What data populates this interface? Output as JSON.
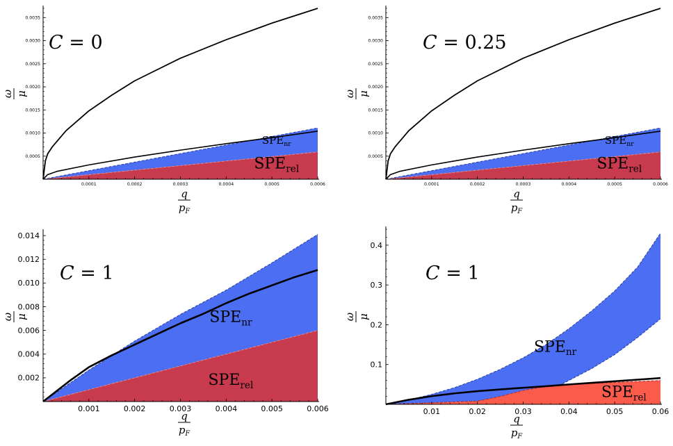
{
  "chart_data": [
    {
      "type": "area",
      "panel": "top-left",
      "annotation": {
        "var": "C",
        "eq": " = ",
        "val": "0"
      },
      "xlabel": {
        "num": "q",
        "den": "p",
        "sub": "F"
      },
      "ylabel": {
        "num": "ω",
        "den": "μ"
      },
      "xlim": [
        0,
        0.0006
      ],
      "ylim": [
        0,
        0.0037
      ],
      "xticks": [
        0.0001,
        0.0002,
        0.0003,
        0.0004,
        0.0005,
        0.0006
      ],
      "xtick_labels": [
        "0.0001",
        "0.0002",
        "0.0003",
        "0.0004",
        "0.0005",
        "0.0006"
      ],
      "yticks": [
        0.0005,
        0.001,
        0.0015,
        0.002,
        0.0025,
        0.003,
        0.0035
      ],
      "ytick_labels": [
        "0.0005",
        "0.0010",
        "0.0015",
        "0.0020",
        "0.0025",
        "0.0030",
        "0.0035"
      ],
      "regions": [
        {
          "name": "SPE_nr",
          "label_main": "SPE",
          "label_sub": "nr",
          "color": "#4b6ef2",
          "edge": "#2a3fa0",
          "lower": [
            [
              0,
              0
            ],
            [
              0.0006,
              0.00059
            ]
          ],
          "upper": [
            [
              0,
              0
            ],
            [
              0.0006,
              0.00111
            ]
          ],
          "label_at": [
            0.00051,
            0.00077
          ],
          "label_size": "small"
        },
        {
          "name": "SPE_rel",
          "label_main": "SPE",
          "label_sub": "rel",
          "color": "#c83a4e",
          "edge": "#e58a8a",
          "lower": [
            [
              0,
              0
            ],
            [
              0.0006,
              0
            ]
          ],
          "upper": [
            [
              0,
              0
            ],
            [
              0.0006,
              0.00059
            ]
          ],
          "label_at": [
            0.00051,
            0.00023
          ],
          "label_size": "large"
        }
      ],
      "curves": [
        {
          "name": "upper-plasmon",
          "points": [
            [
              0,
              0
            ],
            [
              5e-06,
              0.0004
            ],
            [
              1e-05,
              0.00055
            ],
            [
              2e-05,
              0.0007
            ],
            [
              5e-05,
              0.00105
            ],
            [
              0.0001,
              0.00148
            ],
            [
              0.00015,
              0.00182
            ],
            [
              0.0002,
              0.00213
            ],
            [
              0.0003,
              0.00262
            ],
            [
              0.0004,
              0.00302
            ],
            [
              0.0005,
              0.00338
            ],
            [
              0.0006,
              0.0037
            ]
          ],
          "width": 1.8
        },
        {
          "name": "lower-plasmon",
          "points": [
            [
              0,
              0
            ],
            [
              1e-05,
              0.0001
            ],
            [
              3e-05,
              0.00017
            ],
            [
              0.0001,
              0.00031
            ],
            [
              0.0002,
              0.00048
            ],
            [
              0.0003,
              0.00063
            ],
            [
              0.0004,
              0.00077
            ],
            [
              0.0005,
              0.0009
            ],
            [
              0.0006,
              0.00104
            ]
          ],
          "width": 1.6
        }
      ]
    },
    {
      "type": "area",
      "panel": "top-right",
      "annotation": {
        "var": "C",
        "eq": " = ",
        "val": "0.25"
      },
      "xlabel": {
        "num": "q",
        "den": "p",
        "sub": "F"
      },
      "ylabel": {
        "num": "ω",
        "den": "μ"
      },
      "xlim": [
        0,
        0.0006
      ],
      "ylim": [
        0,
        0.0037
      ],
      "xticks": [
        0.0001,
        0.0002,
        0.0003,
        0.0004,
        0.0005,
        0.0006
      ],
      "xtick_labels": [
        "0.0001",
        "0.0002",
        "0.0003",
        "0.0004",
        "0.0005",
        "0.0006"
      ],
      "yticks": [
        0.0005,
        0.001,
        0.0015,
        0.002,
        0.0025,
        0.003,
        0.0035
      ],
      "ytick_labels": [
        "0.0005",
        "0.0010",
        "0.0015",
        "0.0020",
        "0.0025",
        "0.0030",
        "0.0035"
      ],
      "regions": [
        {
          "name": "SPE_nr",
          "label_main": "SPE",
          "label_sub": "nr",
          "color": "#4b6ef2",
          "edge": "#2a3fa0",
          "lower": [
            [
              0,
              0
            ],
            [
              0.0006,
              0.00059
            ]
          ],
          "upper": [
            [
              0,
              0
            ],
            [
              0.0006,
              0.00111
            ]
          ],
          "label_at": [
            0.00051,
            0.00077
          ],
          "label_size": "small"
        },
        {
          "name": "SPE_rel",
          "label_main": "SPE",
          "label_sub": "rel",
          "color": "#c83a4e",
          "edge": "#e58a8a",
          "lower": [
            [
              0,
              0
            ],
            [
              0.0006,
              0
            ]
          ],
          "upper": [
            [
              0,
              0
            ],
            [
              0.0006,
              0.00059
            ]
          ],
          "label_at": [
            0.00051,
            0.00023
          ],
          "label_size": "large"
        }
      ],
      "curves": [
        {
          "name": "upper-plasmon",
          "points": [
            [
              0,
              0
            ],
            [
              5e-06,
              0.0004
            ],
            [
              1e-05,
              0.00055
            ],
            [
              2e-05,
              0.0007
            ],
            [
              5e-05,
              0.00105
            ],
            [
              0.0001,
              0.00148
            ],
            [
              0.00015,
              0.00182
            ],
            [
              0.0002,
              0.00213
            ],
            [
              0.0003,
              0.00262
            ],
            [
              0.0004,
              0.00302
            ],
            [
              0.0005,
              0.00338
            ],
            [
              0.0006,
              0.0037
            ]
          ],
          "width": 1.8
        },
        {
          "name": "lower-plasmon",
          "points": [
            [
              0,
              0
            ],
            [
              1e-05,
              0.0001
            ],
            [
              3e-05,
              0.00017
            ],
            [
              0.0001,
              0.00031
            ],
            [
              0.0002,
              0.00048
            ],
            [
              0.0003,
              0.00063
            ],
            [
              0.0004,
              0.00077
            ],
            [
              0.0005,
              0.0009
            ],
            [
              0.0006,
              0.00104
            ]
          ],
          "width": 1.6
        }
      ]
    },
    {
      "type": "area",
      "panel": "bottom-left",
      "annotation": {
        "var": "C",
        "eq": " = ",
        "val": "1"
      },
      "xlabel": {
        "num": "q",
        "den": "p",
        "sub": "F"
      },
      "ylabel": {
        "num": "ω",
        "den": "μ"
      },
      "xlim": [
        0,
        0.006
      ],
      "ylim": [
        0,
        0.0143
      ],
      "xticks": [
        0.001,
        0.002,
        0.003,
        0.004,
        0.005,
        0.006
      ],
      "xtick_labels": [
        "0.001",
        "0.002",
        "0.003",
        "0.004",
        "0.005",
        "0.006"
      ],
      "yticks": [
        0.002,
        0.004,
        0.006,
        0.008,
        0.01,
        0.012,
        0.014
      ],
      "ytick_labels": [
        "0.002",
        "0.004",
        "0.006",
        "0.008",
        "0.010",
        "0.012",
        "0.014"
      ],
      "regions": [
        {
          "name": "SPE_nr",
          "label_main": "SPE",
          "label_sub": "nr",
          "color": "#4b6ef2",
          "edge": "#2a3fa0",
          "lower": [
            [
              0,
              0
            ],
            [
              0.006,
              0.006
            ]
          ],
          "upper": [
            [
              0,
              0
            ],
            [
              0.001,
              0.00265
            ],
            [
              0.002,
              0.0051
            ],
            [
              0.003,
              0.00735
            ],
            [
              0.004,
              0.0094
            ],
            [
              0.005,
              0.0117
            ],
            [
              0.006,
              0.0141
            ]
          ],
          "label_at": [
            0.0041,
            0.0067
          ],
          "label_size": "large"
        },
        {
          "name": "SPE_rel",
          "label_main": "SPE",
          "label_sub": "rel",
          "color": "#c83a4e",
          "edge": "#e58a8a",
          "lower": [
            [
              0,
              0
            ],
            [
              0.006,
              0
            ]
          ],
          "upper": [
            [
              0,
              0
            ],
            [
              0.006,
              0.006
            ]
          ],
          "label_at": [
            0.0041,
            0.0014
          ],
          "label_size": "large"
        }
      ],
      "curves": [
        {
          "name": "plasmon",
          "points": [
            [
              0,
              0
            ],
            [
              0.0003,
              0.0009
            ],
            [
              0.0006,
              0.0018
            ],
            [
              0.001,
              0.0029
            ],
            [
              0.0015,
              0.0039
            ],
            [
              0.002,
              0.0048
            ],
            [
              0.0025,
              0.0057
            ],
            [
              0.003,
              0.0066
            ],
            [
              0.0035,
              0.0074
            ],
            [
              0.004,
              0.0083
            ],
            [
              0.0045,
              0.0091
            ],
            [
              0.005,
              0.0098
            ],
            [
              0.0055,
              0.0105
            ],
            [
              0.006,
              0.0111
            ]
          ],
          "width": 2.6
        }
      ]
    },
    {
      "type": "area",
      "panel": "bottom-right",
      "annotation": {
        "var": "C",
        "eq": " = ",
        "val": "1"
      },
      "xlabel": {
        "num": "q",
        "den": "p",
        "sub": "F"
      },
      "ylabel": {
        "num": "ω",
        "den": "μ"
      },
      "xlim": [
        0,
        0.06
      ],
      "ylim": [
        0,
        0.44
      ],
      "xticks": [
        0.01,
        0.02,
        0.03,
        0.04,
        0.05,
        0.06
      ],
      "xtick_labels": [
        "0.01",
        "0.02",
        "0.03",
        "0.04",
        "0.05",
        "0.06"
      ],
      "yticks": [
        0.1,
        0.2,
        0.3,
        0.4
      ],
      "ytick_labels": [
        "0.1",
        "0.2",
        "0.3",
        "0.4"
      ],
      "regions": [
        {
          "name": "SPE_nr",
          "label_main": "SPE",
          "label_sub": "nr",
          "color": "#4b6ef2",
          "edge": "#2a3fa0",
          "lower": [
            [
              0,
              0
            ],
            [
              0.005,
              0.002
            ],
            [
              0.01,
              0.004
            ],
            [
              0.015,
              0.006
            ],
            [
              0.02,
              0.008
            ],
            [
              0.025,
              0.01
            ],
            [
              0.03,
              0.013
            ],
            [
              0.035,
              0.03
            ],
            [
              0.04,
              0.06
            ],
            [
              0.045,
              0.09
            ],
            [
              0.05,
              0.125
            ],
            [
              0.055,
              0.168
            ],
            [
              0.06,
              0.215
            ]
          ],
          "upper": [
            [
              0,
              0
            ],
            [
              0.005,
              0.011
            ],
            [
              0.01,
              0.025
            ],
            [
              0.015,
              0.042
            ],
            [
              0.02,
              0.063
            ],
            [
              0.025,
              0.088
            ],
            [
              0.03,
              0.117
            ],
            [
              0.035,
              0.15
            ],
            [
              0.04,
              0.19
            ],
            [
              0.045,
              0.235
            ],
            [
              0.05,
              0.285
            ],
            [
              0.055,
              0.345
            ],
            [
              0.06,
              0.43
            ]
          ],
          "label_at": [
            0.037,
            0.132
          ],
          "label_size": "large"
        },
        {
          "name": "SPE_rel",
          "label_main": "SPE",
          "label_sub": "rel",
          "color": "#fa5b4b",
          "edge": "#a33",
          "lower": [
            [
              0,
              0
            ],
            [
              0.005,
              0
            ],
            [
              0.01,
              0
            ],
            [
              0.015,
              0
            ],
            [
              0.02,
              0
            ],
            [
              0.025,
              0
            ],
            [
              0.03,
              0
            ],
            [
              0.06,
              0
            ]
          ],
          "upper": [
            [
              0,
              0
            ],
            [
              0.005,
              0.002
            ],
            [
              0.01,
              0.004
            ],
            [
              0.015,
              0.006
            ],
            [
              0.02,
              0.008
            ],
            [
              0.025,
              0.02
            ],
            [
              0.03,
              0.035
            ],
            [
              0.035,
              0.045
            ],
            [
              0.04,
              0.05
            ],
            [
              0.05,
              0.055
            ],
            [
              0.06,
              0.06
            ]
          ],
          "label_at": [
            0.052,
            0.018
          ],
          "label_size": "large"
        }
      ],
      "curves": [
        {
          "name": "plasmon",
          "points": [
            [
              0,
              0
            ],
            [
              0.005,
              0.0115
            ],
            [
              0.01,
              0.0205
            ],
            [
              0.015,
              0.0275
            ],
            [
              0.02,
              0.033
            ],
            [
              0.025,
              0.0375
            ],
            [
              0.03,
              0.0415
            ],
            [
              0.035,
              0.0455
            ],
            [
              0.04,
              0.05
            ],
            [
              0.045,
              0.054
            ],
            [
              0.05,
              0.058
            ],
            [
              0.055,
              0.062
            ],
            [
              0.06,
              0.066
            ]
          ],
          "width": 2.6
        }
      ]
    }
  ]
}
